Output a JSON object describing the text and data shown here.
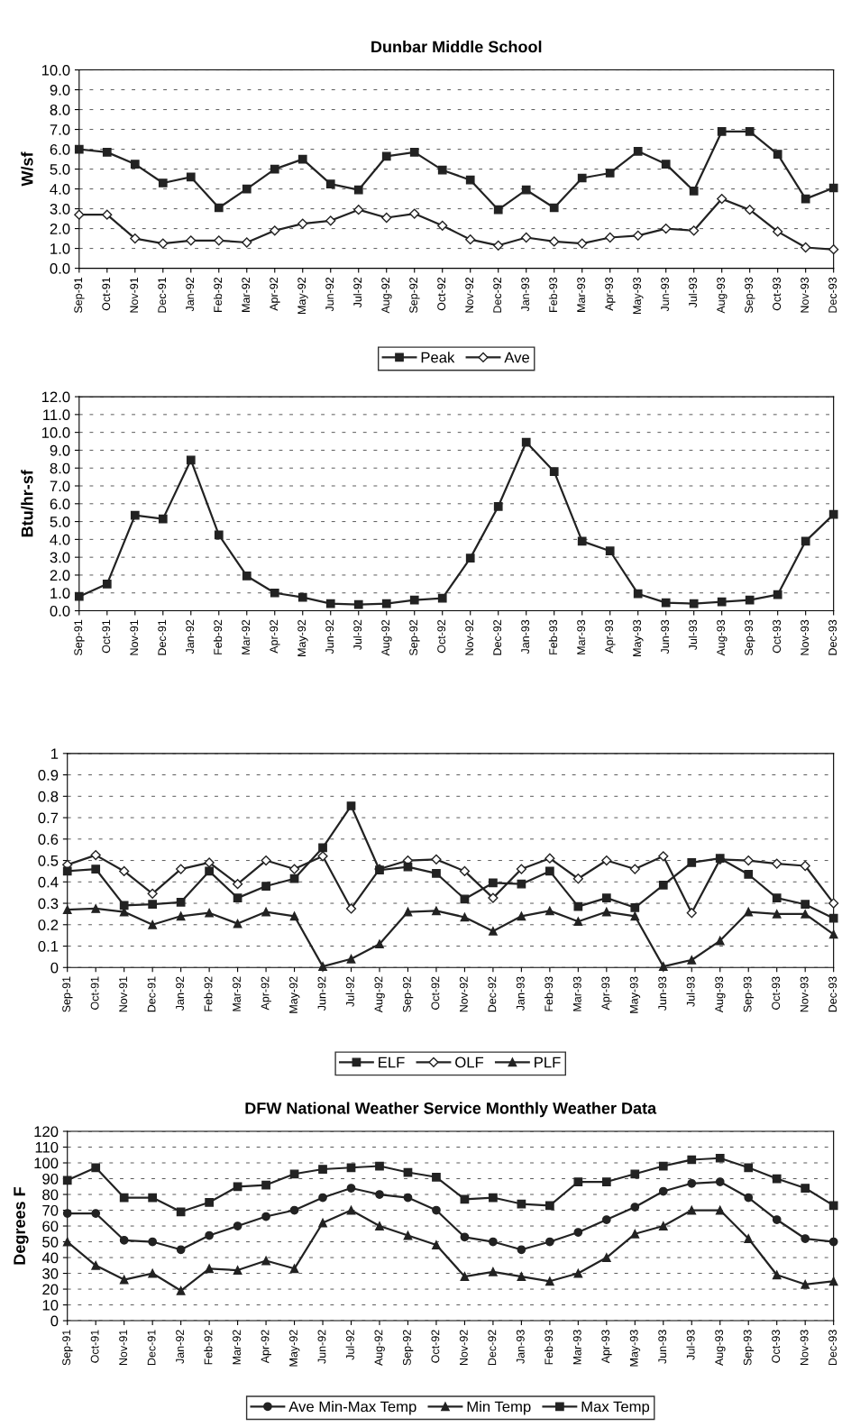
{
  "chart_data": [
    {
      "type": "line",
      "title": "Dunbar Middle School",
      "ylabel": "W/sf",
      "categories": [
        "Sep-91",
        "Oct-91",
        "Nov-91",
        "Dec-91",
        "Jan-92",
        "Feb-92",
        "Mar-92",
        "Apr-92",
        "May-92",
        "Jun-92",
        "Jul-92",
        "Aug-92",
        "Sep-92",
        "Oct-92",
        "Nov-92",
        "Dec-92",
        "Jan-93",
        "Feb-93",
        "Mar-93",
        "Apr-93",
        "May-93",
        "Jun-93",
        "Jul-93",
        "Aug-93",
        "Sep-93",
        "Oct-93",
        "Nov-93",
        "Dec-93"
      ],
      "ylim": [
        0,
        10
      ],
      "yticks": [
        {
          "value": 0,
          "label": "0.0"
        },
        {
          "value": 1,
          "label": "1.0"
        },
        {
          "value": 2,
          "label": "2.0"
        },
        {
          "value": 3,
          "label": "3.0"
        },
        {
          "value": 4,
          "label": "4.0"
        },
        {
          "value": 5,
          "label": "5.0"
        },
        {
          "value": 6,
          "label": "6.0"
        },
        {
          "value": 7,
          "label": "7.0"
        },
        {
          "value": 8,
          "label": "8.0"
        },
        {
          "value": 9,
          "label": "9.0"
        },
        {
          "value": 10,
          "label": "10.0"
        }
      ],
      "grid": "y",
      "legend": "bottom",
      "series": [
        {
          "name": "Peak",
          "color": "#222222",
          "marker": "square",
          "values": [
            6.0,
            5.85,
            5.25,
            4.3,
            4.6,
            3.05,
            4.0,
            5.0,
            5.5,
            4.25,
            3.95,
            5.65,
            5.85,
            4.95,
            4.45,
            2.95,
            3.95,
            3.05,
            4.55,
            4.8,
            5.9,
            5.25,
            3.9,
            6.9,
            6.9,
            5.75,
            3.5,
            4.05
          ]
        },
        {
          "name": "Ave",
          "color": "#222222",
          "marker": "diamond",
          "values": [
            2.7,
            2.7,
            1.5,
            1.25,
            1.4,
            1.4,
            1.3,
            1.9,
            2.25,
            2.4,
            2.95,
            2.55,
            2.75,
            2.15,
            1.45,
            1.15,
            1.55,
            1.35,
            1.25,
            1.55,
            1.65,
            2.0,
            1.9,
            3.5,
            2.95,
            1.85,
            1.05,
            0.95
          ]
        }
      ]
    },
    {
      "type": "line",
      "ylabel": "Btu/hr-sf",
      "categories": [
        "Sep-91",
        "Oct-91",
        "Nov-91",
        "Dec-91",
        "Jan-92",
        "Feb-92",
        "Mar-92",
        "Apr-92",
        "May-92",
        "Jun-92",
        "Jul-92",
        "Aug-92",
        "Sep-92",
        "Oct-92",
        "Nov-92",
        "Dec-92",
        "Jan-93",
        "Feb-93",
        "Mar-93",
        "Apr-93",
        "May-93",
        "Jun-93",
        "Jul-93",
        "Aug-93",
        "Sep-93",
        "Oct-93",
        "Nov-93",
        "Dec-93"
      ],
      "ylim": [
        0,
        12
      ],
      "yticks": [
        {
          "value": 0,
          "label": "0.0"
        },
        {
          "value": 1,
          "label": "1.0"
        },
        {
          "value": 2,
          "label": "2.0"
        },
        {
          "value": 3,
          "label": "3.0"
        },
        {
          "value": 4,
          "label": "4.0"
        },
        {
          "value": 5,
          "label": "5.0"
        },
        {
          "value": 6,
          "label": "6.0"
        },
        {
          "value": 7,
          "label": "7.0"
        },
        {
          "value": 8,
          "label": "8.0"
        },
        {
          "value": 9,
          "label": "9.0"
        },
        {
          "value": 10,
          "label": "10.0"
        },
        {
          "value": 11,
          "label": "11.0"
        },
        {
          "value": 12,
          "label": "12.0"
        }
      ],
      "grid": "y",
      "series": [
        {
          "color": "#222222",
          "marker": "square",
          "values": [
            0.8,
            1.5,
            5.35,
            5.15,
            8.45,
            4.25,
            1.95,
            1.0,
            0.75,
            0.4,
            0.35,
            0.4,
            0.6,
            0.7,
            2.95,
            5.85,
            9.45,
            7.8,
            3.9,
            3.35,
            0.95,
            0.45,
            0.4,
            0.5,
            0.6,
            0.9,
            3.9,
            5.4
          ]
        }
      ]
    },
    {
      "type": "line",
      "categories": [
        "Sep-91",
        "Oct-91",
        "Nov-91",
        "Dec-91",
        "Jan-92",
        "Feb-92",
        "Mar-92",
        "Apr-92",
        "May-92",
        "Jun-92",
        "Jul-92",
        "Aug-92",
        "Sep-92",
        "Oct-92",
        "Nov-92",
        "Dec-92",
        "Jan-93",
        "Feb-93",
        "Mar-93",
        "Apr-93",
        "May-93",
        "Jun-93",
        "Jul-93",
        "Aug-93",
        "Sep-93",
        "Oct-93",
        "Nov-93",
        "Dec-93"
      ],
      "ylim": [
        0,
        1
      ],
      "yticks": [
        0,
        0.1,
        0.2,
        0.3,
        0.4,
        0.5,
        0.6,
        0.7,
        0.8,
        0.9,
        1
      ],
      "grid": "y",
      "legend": "bottom",
      "series": [
        {
          "name": "ELF",
          "color": "#222222",
          "marker": "square",
          "values": [
            0.45,
            0.46,
            0.29,
            0.295,
            0.305,
            0.45,
            0.325,
            0.38,
            0.415,
            0.56,
            0.755,
            0.455,
            0.47,
            0.44,
            0.32,
            0.395,
            0.39,
            0.45,
            0.285,
            0.325,
            0.28,
            0.385,
            0.49,
            0.51,
            0.435,
            0.325,
            0.295,
            0.23
          ]
        },
        {
          "name": "OLF",
          "color": "#222222",
          "marker": "diamond",
          "values": [
            0.48,
            0.525,
            0.45,
            0.345,
            0.46,
            0.49,
            0.39,
            0.5,
            0.46,
            0.52,
            0.275,
            0.46,
            0.5,
            0.505,
            0.45,
            0.325,
            0.46,
            0.51,
            0.415,
            0.5,
            0.46,
            0.52,
            0.255,
            0.505,
            0.5,
            0.485,
            0.475,
            0.3
          ]
        },
        {
          "name": "PLF",
          "color": "#222222",
          "marker": "triangle",
          "values": [
            0.27,
            0.275,
            0.26,
            0.2,
            0.24,
            0.255,
            0.205,
            0.26,
            0.24,
            0.005,
            0.04,
            0.11,
            0.26,
            0.265,
            0.235,
            0.17,
            0.24,
            0.265,
            0.215,
            0.26,
            0.24,
            0.005,
            0.035,
            0.125,
            0.26,
            0.25,
            0.25,
            0.155
          ]
        }
      ]
    },
    {
      "type": "line",
      "title": "DFW National Weather Service Monthly Weather Data",
      "ylabel": "Degrees F",
      "categories": [
        "Sep-91",
        "Oct-91",
        "Nov-91",
        "Dec-91",
        "Jan-92",
        "Feb-92",
        "Mar-92",
        "Apr-92",
        "May-92",
        "Jun-92",
        "Jul-92",
        "Aug-92",
        "Sep-92",
        "Oct-92",
        "Nov-92",
        "Dec-92",
        "Jan-93",
        "Feb-93",
        "Mar-93",
        "Apr-93",
        "May-93",
        "Jun-93",
        "Jul-93",
        "Aug-93",
        "Sep-93",
        "Oct-93",
        "Nov-93",
        "Dec-93"
      ],
      "ylim": [
        0,
        120
      ],
      "yticks": [
        0,
        10,
        20,
        30,
        40,
        50,
        60,
        70,
        80,
        90,
        100,
        110,
        120
      ],
      "grid": "y",
      "legend": "bottom",
      "series": [
        {
          "name": "Ave Min-Max Temp",
          "color": "#222222",
          "marker": "circle",
          "values": [
            68,
            68,
            51,
            50,
            45,
            54,
            60,
            66,
            70,
            78,
            84,
            80,
            78,
            70,
            53,
            50,
            45,
            50,
            56,
            64,
            72,
            82,
            87,
            88,
            78,
            64,
            52,
            50
          ]
        },
        {
          "name": "Min Temp",
          "color": "#222222",
          "marker": "triangle",
          "values": [
            50,
            35,
            26,
            30,
            19,
            33,
            32,
            38,
            33,
            62,
            70,
            60,
            54,
            48,
            28,
            31,
            28,
            25,
            30,
            40,
            55,
            60,
            70,
            70,
            52,
            29,
            23,
            25
          ]
        },
        {
          "name": "Max Temp",
          "color": "#222222",
          "marker": "square",
          "values": [
            89,
            97,
            78,
            78,
            69,
            75,
            85,
            86,
            93,
            96,
            97,
            98,
            94,
            91,
            77,
            78,
            74,
            73,
            88,
            88,
            93,
            98,
            102,
            103,
            97,
            90,
            84,
            73
          ]
        }
      ]
    }
  ]
}
